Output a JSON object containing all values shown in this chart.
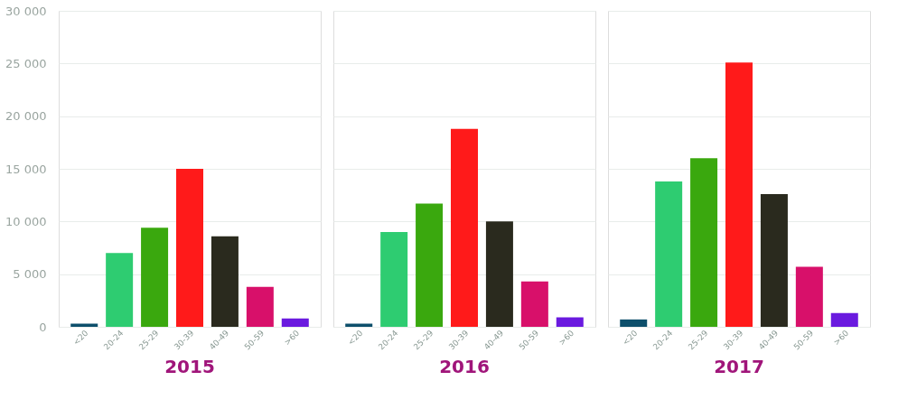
{
  "chart_data": [
    {
      "type": "bar",
      "title": "2015",
      "categories": [
        "<20",
        "20-24",
        "25-29",
        "30-39",
        "40-49",
        "50-59",
        ">60"
      ],
      "values": [
        300,
        7000,
        9400,
        15000,
        8600,
        3800,
        800
      ],
      "colors": [
        "#0d4f6b",
        "#2ecc71",
        "#3aa80e",
        "#ff1a1a",
        "#2a2a1e",
        "#d8106a",
        "#6a1adf"
      ],
      "ylim": [
        0,
        30000
      ],
      "yticks": [
        {
          "value": 0,
          "label": "0"
        },
        {
          "value": 5000,
          "label": "5 000"
        },
        {
          "value": 10000,
          "label": "10 000"
        },
        {
          "value": 15000,
          "label": "15 000"
        },
        {
          "value": 20000,
          "label": "20 000"
        },
        {
          "value": 25000,
          "label": "25 000"
        },
        {
          "value": 30000,
          "label": "30 000"
        }
      ],
      "grid": "y"
    },
    {
      "type": "bar",
      "title": "2016",
      "categories": [
        "<20",
        "20-24",
        "25-29",
        "30-39",
        "40-49",
        "50-59",
        ">60"
      ],
      "values": [
        300,
        9000,
        11700,
        18800,
        10000,
        4300,
        900
      ],
      "colors": [
        "#0d4f6b",
        "#2ecc71",
        "#3aa80e",
        "#ff1a1a",
        "#2a2a1e",
        "#d8106a",
        "#6a1adf"
      ],
      "ylim": [
        0,
        30000
      ],
      "yticks": [
        {
          "value": 0,
          "label": null
        },
        {
          "value": 5000,
          "label": null
        },
        {
          "value": 10000,
          "label": null
        },
        {
          "value": 15000,
          "label": null
        },
        {
          "value": 20000,
          "label": null
        },
        {
          "value": 25000,
          "label": null
        },
        {
          "value": 30000,
          "label": null
        }
      ],
      "grid": "y",
      "tick_labels": "x"
    },
    {
      "type": "bar",
      "title": "2017",
      "categories": [
        "<20",
        "20-24",
        "25-29",
        "30-39",
        "40-49",
        "50-59",
        ">60"
      ],
      "values": [
        700,
        13800,
        16000,
        25100,
        12600,
        5700,
        1300
      ],
      "colors": [
        "#0d4f6b",
        "#2ecc71",
        "#3aa80e",
        "#ff1a1a",
        "#2a2a1e",
        "#d8106a",
        "#6a1adf"
      ],
      "ylim": [
        0,
        30000
      ],
      "yticks": [
        {
          "value": 0,
          "label": null
        },
        {
          "value": 5000,
          "label": null
        },
        {
          "value": 10000,
          "label": null
        },
        {
          "value": 15000,
          "label": null
        },
        {
          "value": 20000,
          "label": null
        },
        {
          "value": 25000,
          "label": null
        },
        {
          "value": 30000,
          "label": null
        }
      ],
      "grid": "y",
      "tick_labels": "x"
    }
  ]
}
